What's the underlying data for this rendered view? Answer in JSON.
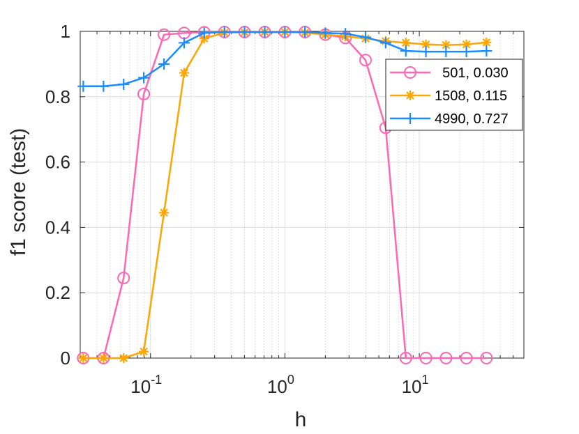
{
  "chart_data": {
    "type": "line",
    "xscale": "log",
    "xlim": [
      0.03,
      60
    ],
    "ylim": [
      0,
      1
    ],
    "xlabel": "h",
    "ylabel": "f1 score (test)",
    "x_ticks": [
      {
        "value": 0.1,
        "base": "10",
        "exp": "-1"
      },
      {
        "value": 1,
        "base": "10",
        "exp": "0"
      },
      {
        "value": 10,
        "base": "10",
        "exp": "1"
      }
    ],
    "y_ticks": [
      {
        "value": 0,
        "label": "0"
      },
      {
        "value": 0.2,
        "label": "0.2"
      },
      {
        "value": 0.4,
        "label": "0.4"
      },
      {
        "value": 0.6,
        "label": "0.6"
      },
      {
        "value": 0.8,
        "label": "0.8"
      },
      {
        "value": 1,
        "label": "1"
      }
    ],
    "grid": true,
    "legend_position": "top-right",
    "x": [
      0.0316,
      0.0447,
      0.0631,
      0.0891,
      0.126,
      0.178,
      0.251,
      0.355,
      0.501,
      0.708,
      1.0,
      1.41,
      2.0,
      2.82,
      3.98,
      5.62,
      7.94,
      11.2,
      15.8,
      22.4,
      31.6
    ],
    "series": [
      {
        "name": "  501, 0.030",
        "color": "#ff66b3",
        "marker": "circle",
        "values": [
          0,
          0,
          0.245,
          0.808,
          0.99,
          0.995,
          0.997,
          0.998,
          0.998,
          0.998,
          0.998,
          0.998,
          0.99,
          0.98,
          0.912,
          0.705,
          0.0,
          0.0,
          0.0,
          0.0,
          0.0
        ]
      },
      {
        "name": "1508, 0.115",
        "color": "#ffa500",
        "marker": "asterisk",
        "values": [
          0,
          0,
          0,
          0.02,
          0.445,
          0.873,
          0.978,
          0.996,
          0.997,
          0.998,
          0.998,
          0.996,
          0.99,
          0.985,
          0.978,
          0.97,
          0.965,
          0.96,
          0.958,
          0.96,
          0.966
        ]
      },
      {
        "name": "4990, 0.727",
        "color": "#1a8cff",
        "marker": "plus",
        "values": [
          0.832,
          0.832,
          0.838,
          0.858,
          0.9,
          0.965,
          0.995,
          0.998,
          0.998,
          0.998,
          0.998,
          0.998,
          0.995,
          0.993,
          0.982,
          0.965,
          0.94,
          0.938,
          0.938,
          0.938,
          0.94
        ]
      }
    ]
  }
}
